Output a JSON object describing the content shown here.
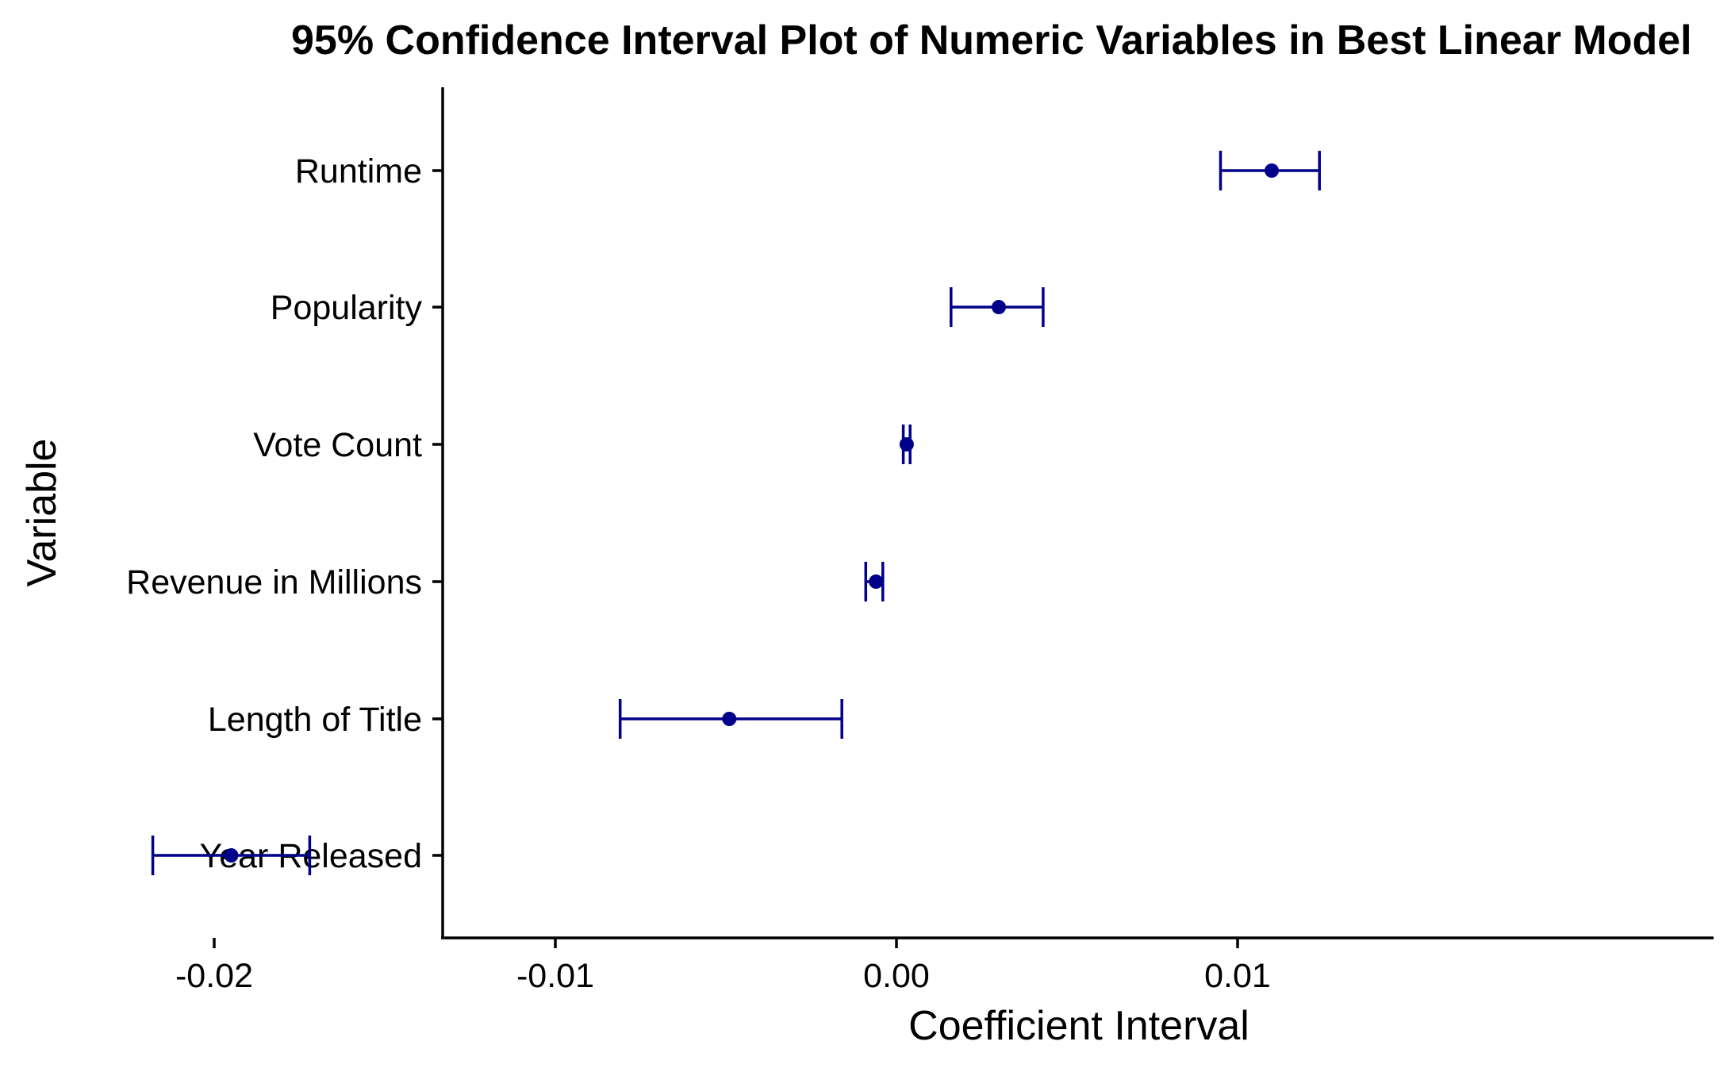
{
  "chart_data": {
    "type": "errorbar",
    "title": "95% Confidence Interval Plot of Numeric Variables in Best Linear Model",
    "xlabel": "Coefficient Interval",
    "ylabel": "Variable",
    "xlim": [
      -0.0235,
      0.014
    ],
    "x_ticks": [
      {
        "value": -0.02,
        "label": "-0.02"
      },
      {
        "value": -0.01,
        "label": "-0.01"
      },
      {
        "value": 0.0,
        "label": "0.00"
      },
      {
        "value": 0.01,
        "label": "0.01"
      }
    ],
    "categories": [
      "Runtime",
      "Popularity",
      "Vote Count",
      "Revenue in Millions",
      "Length of Title",
      "Year Released"
    ],
    "estimates": [
      0.011,
      0.003,
      0.0003,
      -0.0006,
      -0.0049,
      -0.0195
    ],
    "lower": [
      0.0095,
      0.0016,
      0.0002,
      -0.0009,
      -0.0081,
      -0.0218
    ],
    "upper": [
      0.0124,
      0.0043,
      0.0004,
      -0.0004,
      -0.0016,
      -0.0172
    ],
    "color": "#00008B",
    "grid": false,
    "legend": "none"
  }
}
